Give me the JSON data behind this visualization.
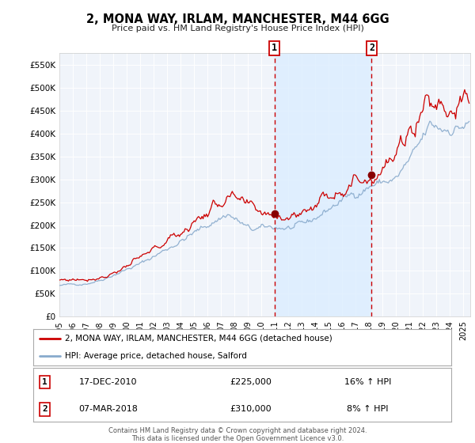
{
  "title": "2, MONA WAY, IRLAM, MANCHESTER, M44 6GG",
  "subtitle": "Price paid vs. HM Land Registry's House Price Index (HPI)",
  "legend_line1": "2, MONA WAY, IRLAM, MANCHESTER, M44 6GG (detached house)",
  "legend_line2": "HPI: Average price, detached house, Salford",
  "line_color_red": "#cc0000",
  "line_color_blue": "#88aacc",
  "fill_color": "#ddeeff",
  "vline_color": "#cc0000",
  "marker_color": "#880000",
  "point1_date": "17-DEC-2010",
  "point1_price": "£225,000",
  "point1_hpi": "16% ↑ HPI",
  "point1_x": 2010.96,
  "point1_y": 225000,
  "point2_date": "07-MAR-2018",
  "point2_price": "£310,000",
  "point2_hpi": "8% ↑ HPI",
  "point2_x": 2018.18,
  "point2_y": 310000,
  "ylim": [
    0,
    575000
  ],
  "xlim": [
    1995.0,
    2025.5
  ],
  "yticks": [
    0,
    50000,
    100000,
    150000,
    200000,
    250000,
    300000,
    350000,
    400000,
    450000,
    500000,
    550000
  ],
  "ytick_labels": [
    "£0",
    "£50K",
    "£100K",
    "£150K",
    "£200K",
    "£250K",
    "£300K",
    "£350K",
    "£400K",
    "£450K",
    "£500K",
    "£550K"
  ],
  "footer_line1": "Contains HM Land Registry data © Crown copyright and database right 2024.",
  "footer_line2": "This data is licensed under the Open Government Licence v3.0.",
  "background_color": "#f0f4fa",
  "grid_color": "#ffffff",
  "spine_color": "#cccccc"
}
